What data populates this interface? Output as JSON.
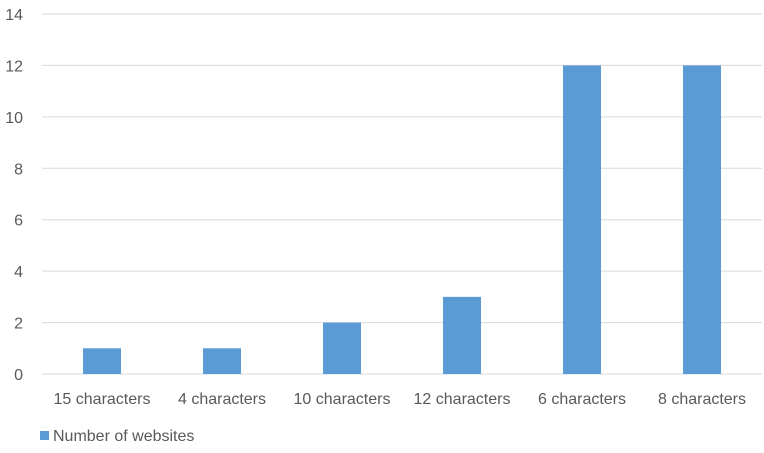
{
  "chart_data": {
    "type": "bar",
    "categories": [
      "15 characters",
      "4 characters",
      "10 characters",
      "12 characters",
      "6 characters",
      "8 characters"
    ],
    "series": [
      {
        "name": "Number of websites",
        "values": [
          1,
          1,
          2,
          3,
          12,
          12
        ],
        "color": "#5b9bd5"
      }
    ],
    "y_ticks": [
      "0",
      "2",
      "4",
      "6",
      "8",
      "10",
      "12",
      "14"
    ],
    "ylim": [
      0,
      14
    ],
    "grid": true,
    "legend_position": "bottom-left",
    "gridline_color": "#d9d9d9",
    "label_color": "#595959"
  }
}
